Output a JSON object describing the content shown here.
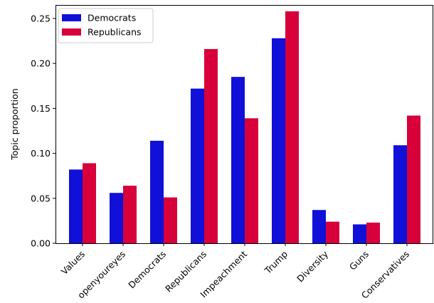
{
  "chart_data": {
    "type": "bar",
    "title": "",
    "xlabel": "",
    "ylabel": "Topic proportion",
    "ylim": [
      0,
      0.265
    ],
    "yticks": [
      0.0,
      0.05,
      0.1,
      0.15,
      0.2,
      0.25
    ],
    "ytick_labels": [
      "0.00",
      "0.05",
      "0.10",
      "0.15",
      "0.20",
      "0.25"
    ],
    "categories": [
      "Values",
      "openyoureyes",
      "Democrats",
      "Republicans",
      "Impeachment",
      "Trump",
      "Diversity",
      "Guns",
      "Conservatives"
    ],
    "series": [
      {
        "name": "Democrats",
        "color": "#1010d8",
        "values": [
          0.082,
          0.056,
          0.114,
          0.172,
          0.185,
          0.228,
          0.037,
          0.021,
          0.109
        ]
      },
      {
        "name": "Republicans",
        "color": "#d8003a",
        "values": [
          0.089,
          0.064,
          0.051,
          0.216,
          0.139,
          0.258,
          0.024,
          0.023,
          0.142
        ]
      }
    ],
    "legend": {
      "position": "top-left"
    },
    "grid": false
  }
}
